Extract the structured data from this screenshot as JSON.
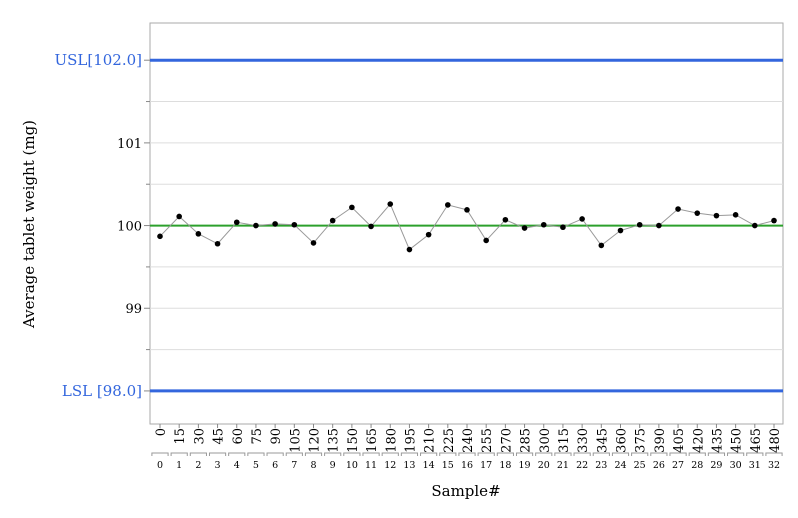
{
  "chart_data": {
    "type": "line",
    "title": "",
    "xlabel": "Sample#",
    "ylabel": "Average tablet weight (mg)",
    "ylim": [
      97.6,
      102.45
    ],
    "yticks": [
      99,
      100,
      101
    ],
    "y_minor_ticks": [
      98.5,
      99.5,
      100.5,
      101.5
    ],
    "grid": true,
    "center_line": {
      "value": 100,
      "color": "#2ca02c"
    },
    "spec_limits": [
      {
        "label": "USL[102.0]",
        "value": 102.0,
        "color": "#3366dd"
      },
      {
        "label": "LSL [98.0]",
        "value": 98.0,
        "color": "#3366dd"
      }
    ],
    "x_time_labels": [
      "0",
      "15",
      "30",
      "45",
      "60",
      "75",
      "90",
      "105",
      "120",
      "135",
      "150",
      "165",
      "180",
      "195",
      "210",
      "225",
      "240",
      "255",
      "270",
      "285",
      "300",
      "315",
      "330",
      "345",
      "360",
      "375",
      "390",
      "405",
      "420",
      "435",
      "450",
      "465",
      "480"
    ],
    "x_sample_labels": [
      "0",
      "1",
      "2",
      "3",
      "4",
      "5",
      "6",
      "7",
      "8",
      "9",
      "10",
      "11",
      "12",
      "13",
      "14",
      "15",
      "16",
      "17",
      "18",
      "19",
      "20",
      "21",
      "22",
      "23",
      "24",
      "25",
      "26",
      "27",
      "28",
      "29",
      "30",
      "31",
      "32"
    ],
    "series": [
      {
        "values": [
          99.87,
          100.11,
          99.9,
          99.78,
          100.04,
          100.0,
          100.02,
          100.01,
          99.79,
          100.06,
          100.22,
          99.99,
          100.26,
          99.71,
          99.89,
          100.25,
          100.19,
          99.82,
          100.07,
          99.97,
          100.01,
          99.98,
          100.08,
          99.76,
          99.94,
          100.01,
          100.0,
          100.2,
          100.15,
          100.12,
          100.13,
          100.0,
          100.06
        ],
        "color": "#999999",
        "marker_color": "#000000"
      }
    ]
  }
}
